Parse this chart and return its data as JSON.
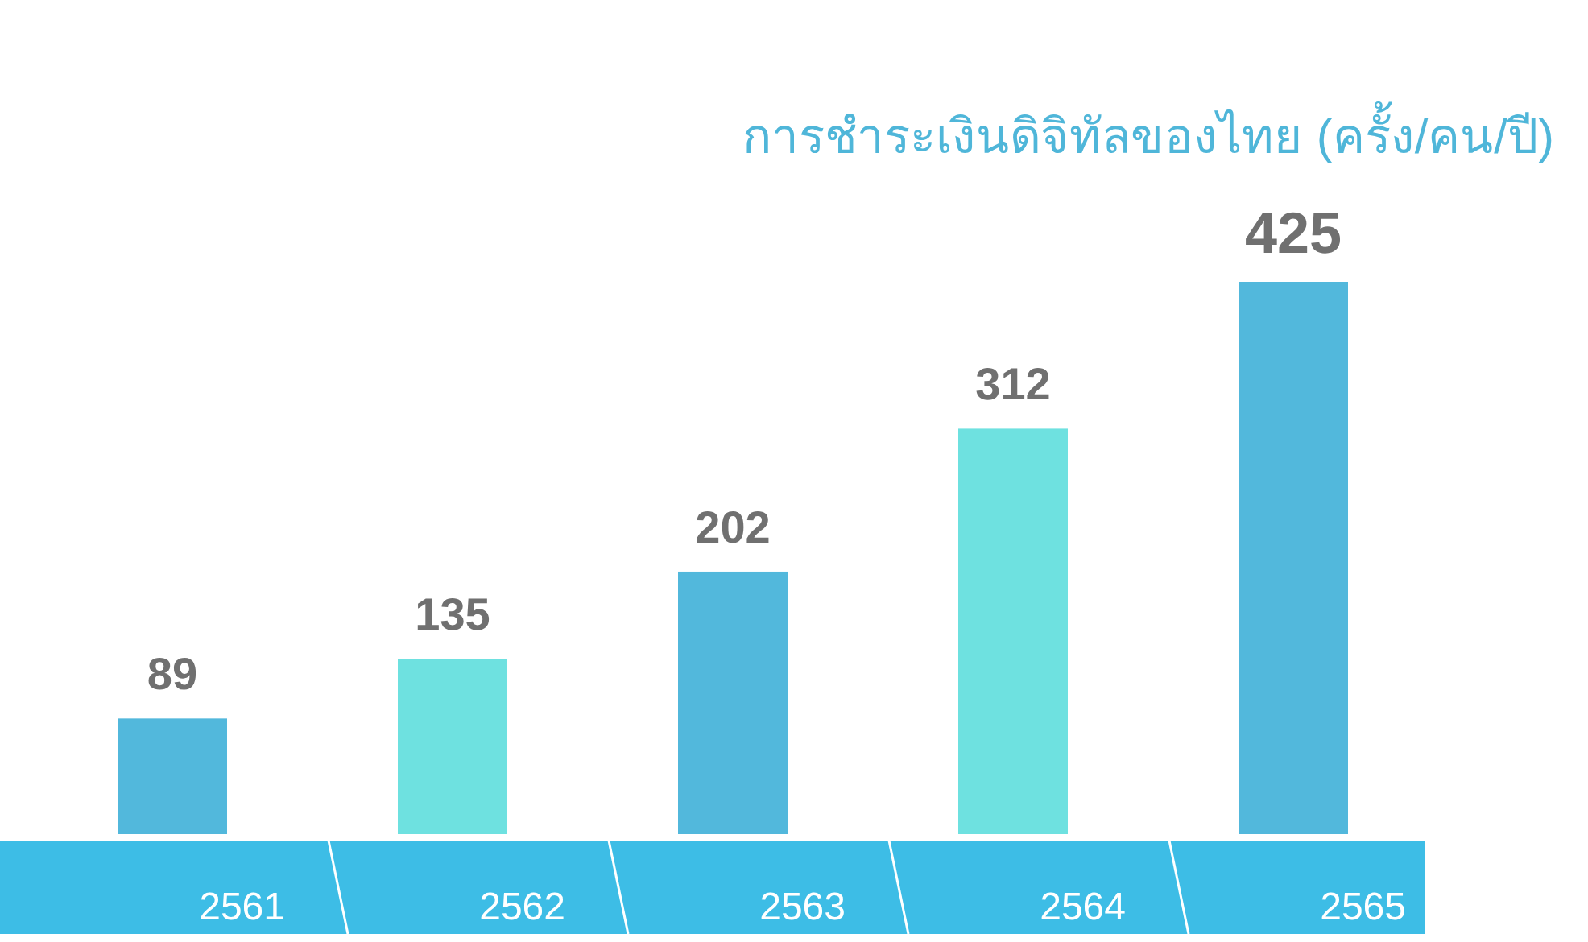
{
  "chart_data": {
    "type": "bar",
    "title": "การชำระเงินดิจิทัลของไทย (ครั้ง/คน/ปี)",
    "categories": [
      "2561",
      "2562",
      "2563",
      "2564",
      "2565"
    ],
    "values": [
      89,
      135,
      202,
      312,
      425
    ],
    "colors": [
      "#52b8dc",
      "#6ee1e0",
      "#52b8dc",
      "#6ee1e0",
      "#52b8dc"
    ],
    "data_labels": true
  }
}
